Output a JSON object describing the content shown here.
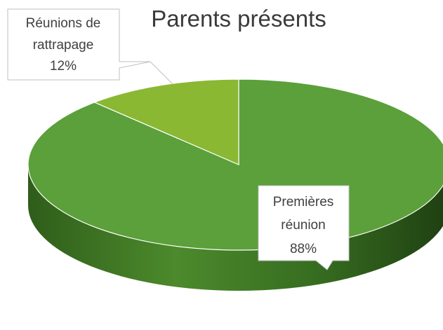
{
  "chart_data": {
    "type": "pie",
    "title": "Parents présents",
    "slices": [
      {
        "label_lines": [
          "Premières",
          "réunion"
        ],
        "percent_label": "88%",
        "value": 88,
        "color": "#5ba03a"
      },
      {
        "label_lines": [
          "Réunions de",
          "rattrapage"
        ],
        "percent_label": "12%",
        "value": 12,
        "color": "#8ab833"
      }
    ],
    "legend": "none",
    "style": "3d"
  }
}
